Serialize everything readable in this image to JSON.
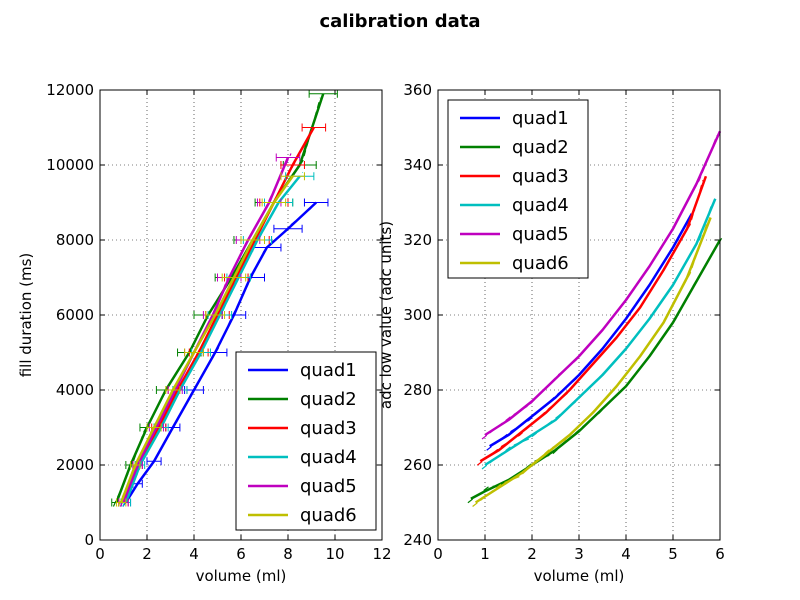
{
  "figure": {
    "title": "calibration data"
  },
  "colors": {
    "quad1": "#0000ff",
    "quad2": "#008000",
    "quad3": "#ff0000",
    "quad4": "#00bfbf",
    "quad5": "#bf00bf",
    "quad6": "#bfbf00"
  },
  "chart_data": [
    {
      "type": "line",
      "title": "",
      "xlabel": "volume (ml)",
      "ylabel": "fill duration (ms)",
      "xlim": [
        0,
        12
      ],
      "ylim": [
        0,
        12000
      ],
      "xticks": [
        "0",
        "2",
        "4",
        "6",
        "8",
        "10",
        "12"
      ],
      "yticks": [
        "0",
        "2000",
        "4000",
        "6000",
        "8000",
        "10000",
        "12000"
      ],
      "grid": true,
      "legend": "lower-right",
      "series": [
        {
          "name": "quad1",
          "x": [
            1.1,
            1.6,
            2.3,
            3.1,
            4.0,
            4.9,
            5.7,
            6.4,
            7.1,
            8.0,
            9.2
          ],
          "y": [
            1000,
            1500,
            2100,
            3000,
            4000,
            5000,
            6000,
            7000,
            7800,
            8300,
            9000
          ],
          "xerr": [
            0.2,
            0.2,
            0.3,
            0.3,
            0.4,
            0.5,
            0.5,
            0.6,
            0.6,
            0.6,
            0.5
          ]
        },
        {
          "name": "quad2",
          "x": [
            0.7,
            1.3,
            2.0,
            2.8,
            3.8,
            4.6,
            5.6,
            6.5,
            7.4,
            8.5,
            9.5
          ],
          "y": [
            1000,
            2000,
            3000,
            4000,
            5000,
            6000,
            7000,
            8000,
            9000,
            10000,
            11900
          ],
          "xerr": [
            0.2,
            0.2,
            0.3,
            0.4,
            0.5,
            0.6,
            0.7,
            0.8,
            0.8,
            0.7,
            0.6
          ]
        },
        {
          "name": "quad3",
          "x": [
            1.0,
            1.6,
            2.5,
            3.3,
            4.2,
            5.0,
            5.8,
            6.6,
            7.4,
            8.2,
            9.1
          ],
          "y": [
            1000,
            2000,
            3000,
            4000,
            5000,
            6000,
            7000,
            8000,
            9000,
            10000,
            11000
          ],
          "xerr": [
            0.2,
            0.2,
            0.3,
            0.4,
            0.4,
            0.5,
            0.5,
            0.6,
            0.6,
            0.5,
            0.5
          ]
        },
        {
          "name": "quad4",
          "x": [
            1.1,
            1.7,
            2.6,
            3.4,
            4.3,
            5.1,
            5.9,
            6.7,
            7.6,
            8.5
          ],
          "y": [
            1000,
            2000,
            3000,
            4000,
            5000,
            6000,
            7000,
            8000,
            9000,
            9700
          ],
          "xerr": [
            0.2,
            0.2,
            0.3,
            0.3,
            0.4,
            0.5,
            0.5,
            0.6,
            0.6,
            0.6
          ]
        },
        {
          "name": "quad5",
          "x": [
            1.0,
            1.6,
            2.4,
            3.2,
            4.0,
            4.8,
            5.5,
            6.3,
            7.2,
            8.0
          ],
          "y": [
            1000,
            2000,
            3000,
            4000,
            5000,
            6000,
            7000,
            8000,
            9000,
            10200
          ],
          "xerr": [
            0.2,
            0.2,
            0.3,
            0.3,
            0.4,
            0.4,
            0.5,
            0.5,
            0.5,
            0.5
          ]
        },
        {
          "name": "quad6",
          "x": [
            0.9,
            1.5,
            2.3,
            3.1,
            4.0,
            4.9,
            5.7,
            6.5,
            7.4,
            8.2
          ],
          "y": [
            1000,
            2000,
            3000,
            4000,
            5000,
            6000,
            7000,
            8000,
            9000,
            9700
          ],
          "xerr": [
            0.2,
            0.2,
            0.3,
            0.3,
            0.4,
            0.4,
            0.5,
            0.5,
            0.5,
            0.5
          ]
        }
      ]
    },
    {
      "type": "line",
      "title": "",
      "xlabel": "volume (ml)",
      "ylabel": "adc low value (adc units)",
      "xlim": [
        0,
        6
      ],
      "ylim": [
        240,
        360
      ],
      "xticks": [
        "0",
        "1",
        "2",
        "3",
        "4",
        "5",
        "6"
      ],
      "yticks": [
        "240",
        "260",
        "280",
        "300",
        "320",
        "340",
        "360"
      ],
      "grid": true,
      "legend": "upper-left",
      "series": [
        {
          "name": "quad1",
          "x": [
            1.1,
            1.5,
            2.0,
            2.5,
            3.0,
            3.5,
            4.0,
            4.5,
            5.0,
            5.4
          ],
          "y": [
            265,
            268,
            273,
            278,
            284,
            291,
            299,
            308,
            318,
            327
          ]
        },
        {
          "name": "quad2",
          "x": [
            0.7,
            1.0,
            1.5,
            2.0,
            2.5,
            3.0,
            3.5,
            4.0,
            4.5,
            5.0,
            5.5,
            6.0
          ],
          "y": [
            251,
            253,
            256,
            260,
            264,
            269,
            275,
            281,
            289,
            298,
            309,
            320
          ]
        },
        {
          "name": "quad3",
          "x": [
            0.9,
            1.3,
            1.8,
            2.3,
            2.8,
            3.3,
            3.8,
            4.3,
            4.8,
            5.3,
            5.7
          ],
          "y": [
            261,
            264,
            269,
            274,
            280,
            287,
            294,
            302,
            312,
            323,
            337
          ]
        },
        {
          "name": "quad4",
          "x": [
            1.0,
            1.5,
            2.0,
            2.5,
            3.0,
            3.5,
            4.0,
            4.5,
            5.0,
            5.5,
            5.9
          ],
          "y": [
            260,
            264,
            268,
            272,
            278,
            284,
            291,
            299,
            308,
            319,
            331
          ]
        },
        {
          "name": "quad5",
          "x": [
            1.0,
            1.5,
            2.0,
            2.5,
            3.0,
            3.5,
            4.0,
            4.5,
            5.0,
            5.5,
            6.0
          ],
          "y": [
            268,
            272,
            277,
            283,
            289,
            296,
            304,
            313,
            323,
            335,
            349
          ]
        },
        {
          "name": "quad6",
          "x": [
            0.8,
            1.3,
            1.8,
            2.3,
            2.8,
            3.3,
            3.8,
            4.3,
            4.8,
            5.3,
            5.8
          ],
          "y": [
            250,
            254,
            258,
            263,
            268,
            274,
            281,
            289,
            298,
            310,
            326
          ]
        }
      ]
    }
  ]
}
